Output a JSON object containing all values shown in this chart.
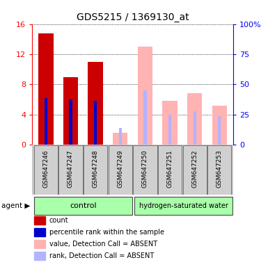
{
  "title": "GDS5215 / 1369130_at",
  "samples": [
    "GSM647246",
    "GSM647247",
    "GSM647248",
    "GSM647249",
    "GSM647250",
    "GSM647251",
    "GSM647252",
    "GSM647253"
  ],
  "count_values": [
    14.8,
    9.0,
    11.0,
    0.0,
    0.0,
    0.0,
    0.0,
    0.0
  ],
  "rank_values": [
    6.2,
    6.0,
    5.8,
    0.0,
    0.0,
    0.0,
    0.0,
    0.0
  ],
  "absent_value_values": [
    0.0,
    0.0,
    0.0,
    1.6,
    13.0,
    5.8,
    6.8,
    5.2
  ],
  "absent_rank_values": [
    0.0,
    0.0,
    0.0,
    2.2,
    7.2,
    4.0,
    4.4,
    3.8
  ],
  "left_ylim": [
    0,
    16
  ],
  "left_yticks": [
    0,
    4,
    8,
    12,
    16
  ],
  "right_ylim": [
    0,
    100
  ],
  "right_yticks": [
    0,
    25,
    50,
    75,
    100
  ],
  "right_yticklabels": [
    "0",
    "25",
    "50",
    "75",
    "100%"
  ],
  "bar_width": 0.6,
  "rank_bar_width": 0.12,
  "color_count": "#cc0000",
  "color_rank": "#0000cc",
  "color_absent_value": "#ffb3b3",
  "color_absent_rank": "#b3b3ff",
  "bg_sample": "#c8c8c8",
  "legend_items": [
    {
      "color": "#cc0000",
      "label": "count"
    },
    {
      "color": "#0000cc",
      "label": "percentile rank within the sample"
    },
    {
      "color": "#ffb3b3",
      "label": "value, Detection Call = ABSENT"
    },
    {
      "color": "#b3b3ff",
      "label": "rank, Detection Call = ABSENT"
    }
  ]
}
